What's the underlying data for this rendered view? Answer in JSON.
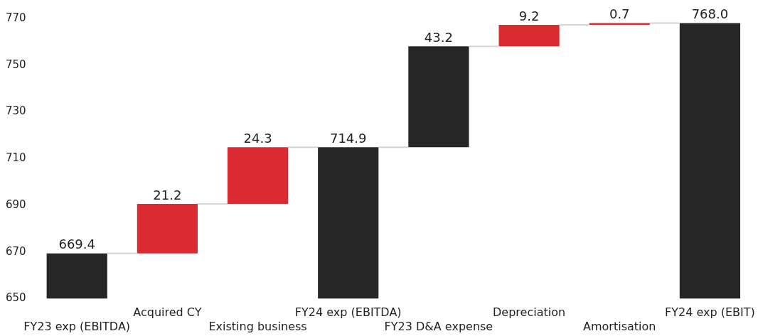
{
  "chart_data": {
    "type": "bar",
    "categories": [
      "FY23 exp (EBITDA)",
      "Acquired CY",
      "Existing business",
      "FY24 exp (EBITDA)",
      "FY23 D&A expense",
      "Depreciation",
      "Amortisation",
      "FY24 exp (EBIT)"
    ],
    "values": [
      669.4,
      21.2,
      24.3,
      714.9,
      43.2,
      9.2,
      0.7,
      768.0
    ],
    "base": [
      null,
      669.4,
      690.6,
      null,
      714.9,
      758.1,
      767.3,
      null
    ],
    "colors": [
      "#262626",
      "#d92b30",
      "#d92b30",
      "#262626",
      "#262626",
      "#d92b30",
      "#d92b30",
      "#262626"
    ],
    "ylim": [
      650,
      770
    ],
    "yticks": [
      650,
      670,
      690,
      710,
      730,
      750,
      770
    ],
    "value_labels": [
      "669.4",
      "21.2",
      "24.3",
      "714.9",
      "43.2",
      "9.2",
      "0.7",
      "768.0"
    ],
    "grid": false,
    "legend": false
  }
}
